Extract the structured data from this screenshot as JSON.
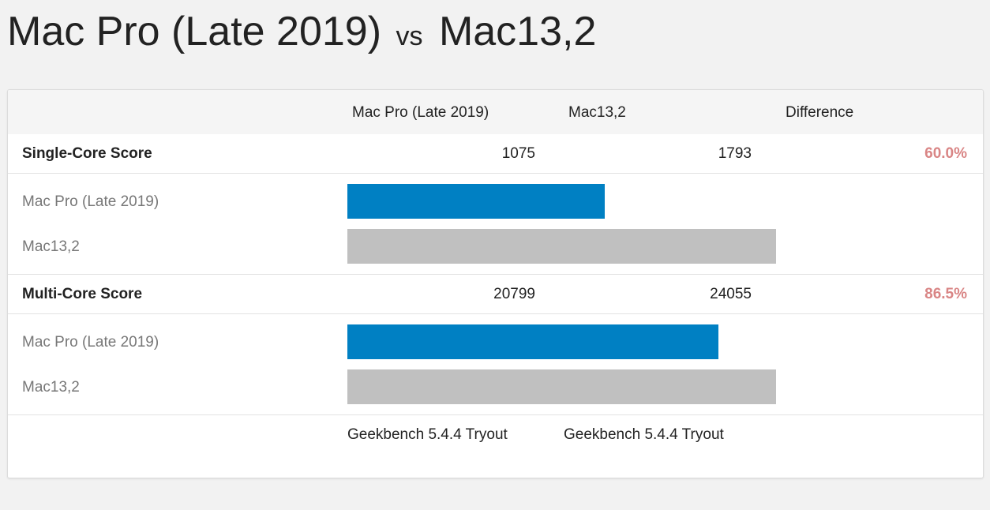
{
  "title": {
    "left": "Mac Pro (Late 2019)",
    "vs": "vs",
    "right": "Mac13,2"
  },
  "colors": {
    "primary_bar": "#0080c3",
    "secondary_bar": "#c0c0c0",
    "difference_text": "#d98585"
  },
  "table": {
    "header": {
      "col1": "Mac Pro (Late 2019)",
      "col2": "Mac13,2",
      "col3": "Difference"
    },
    "scale_max": 1793,
    "sections": [
      {
        "title": "Single-Core Score",
        "value1": "1075",
        "value2": "1793",
        "difference": "60.0%",
        "bars": [
          {
            "label": "Mac Pro (Late 2019)",
            "value": 1075
          },
          {
            "label": "Mac13,2",
            "value": 1793
          }
        ]
      },
      {
        "title": "Multi-Core Score",
        "value1": "20799",
        "value2": "24055",
        "difference": "86.5%",
        "bars": [
          {
            "label": "Mac Pro (Late 2019)",
            "value": 20799
          },
          {
            "label": "Mac13,2",
            "value": 24055
          }
        ]
      }
    ],
    "footer": {
      "version1": "Geekbench 5.4.4 Tryout",
      "version2": "Geekbench 5.4.4 Tryout"
    }
  }
}
